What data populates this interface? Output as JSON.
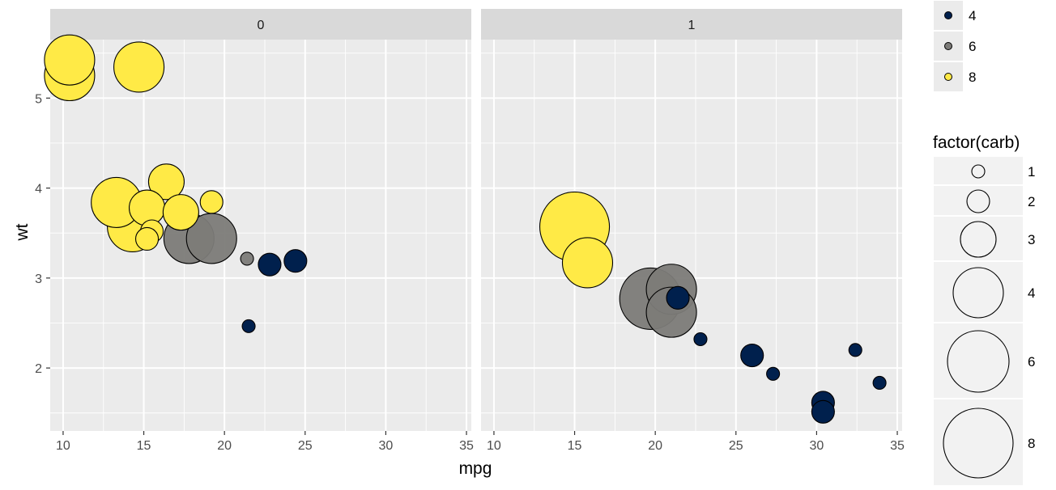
{
  "chart_data": {
    "type": "scatter",
    "xlabel": "mpg",
    "ylabel": "wt",
    "facets": [
      "0",
      "1"
    ],
    "xlim": [
      9.2,
      35.3
    ],
    "ylim": [
      1.3,
      5.65
    ],
    "xticks": [
      10,
      15,
      20,
      25,
      30,
      35
    ],
    "yticks": [
      2,
      3,
      4,
      5
    ],
    "grid": true,
    "colors": {
      "4": "#00204d",
      "6": "#7c7b78",
      "8": "#ffea46",
      "panel_bg": "#ebebeb",
      "strip_bg": "#d9d9d9",
      "gridline": "#ffffff"
    },
    "fill_legend": {
      "title": "",
      "position": "right",
      "entries": [
        {
          "label": "4",
          "color": "#00204d"
        },
        {
          "label": "6",
          "color": "#7c7b78"
        },
        {
          "label": "8",
          "color": "#ffea46"
        }
      ]
    },
    "size_legend": {
      "title": "factor(carb)",
      "position": "right",
      "entries": [
        "1",
        "2",
        "3",
        "4",
        "6",
        "8"
      ]
    },
    "points": [
      {
        "facet": "0",
        "mpg": 10.4,
        "wt": 5.25,
        "cyl": "8",
        "carb": "4"
      },
      {
        "facet": "0",
        "mpg": 10.4,
        "wt": 5.424,
        "cyl": "8",
        "carb": "4"
      },
      {
        "facet": "0",
        "mpg": 14.7,
        "wt": 5.345,
        "cyl": "8",
        "carb": "4"
      },
      {
        "facet": "0",
        "mpg": 14.3,
        "wt": 3.57,
        "cyl": "8",
        "carb": "4"
      },
      {
        "facet": "0",
        "mpg": 13.3,
        "wt": 3.84,
        "cyl": "8",
        "carb": "4"
      },
      {
        "facet": "0",
        "mpg": 16.4,
        "wt": 4.07,
        "cyl": "8",
        "carb": "3"
      },
      {
        "facet": "0",
        "mpg": 15.2,
        "wt": 3.78,
        "cyl": "8",
        "carb": "3"
      },
      {
        "facet": "0",
        "mpg": 17.3,
        "wt": 3.73,
        "cyl": "8",
        "carb": "3"
      },
      {
        "facet": "0",
        "mpg": 19.2,
        "wt": 3.845,
        "cyl": "8",
        "carb": "2"
      },
      {
        "facet": "0",
        "mpg": 15.5,
        "wt": 3.52,
        "cyl": "8",
        "carb": "2"
      },
      {
        "facet": "0",
        "mpg": 15.2,
        "wt": 3.435,
        "cyl": "8",
        "carb": "2"
      },
      {
        "facet": "0",
        "mpg": 17.8,
        "wt": 3.44,
        "cyl": "6",
        "carb": "4"
      },
      {
        "facet": "0",
        "mpg": 19.2,
        "wt": 3.44,
        "cyl": "6",
        "carb": "4"
      },
      {
        "facet": "0",
        "mpg": 21.4,
        "wt": 3.215,
        "cyl": "6",
        "carb": "1"
      },
      {
        "facet": "0",
        "mpg": 22.8,
        "wt": 3.15,
        "cyl": "4",
        "carb": "2"
      },
      {
        "facet": "0",
        "mpg": 24.4,
        "wt": 3.19,
        "cyl": "4",
        "carb": "2"
      },
      {
        "facet": "0",
        "mpg": 21.5,
        "wt": 2.465,
        "cyl": "4",
        "carb": "1"
      },
      {
        "facet": "1",
        "mpg": 15.0,
        "wt": 3.57,
        "cyl": "8",
        "carb": "8"
      },
      {
        "facet": "1",
        "mpg": 15.8,
        "wt": 3.17,
        "cyl": "8",
        "carb": "4"
      },
      {
        "facet": "1",
        "mpg": 21.0,
        "wt": 2.875,
        "cyl": "6",
        "carb": "4"
      },
      {
        "facet": "1",
        "mpg": 21.0,
        "wt": 2.62,
        "cyl": "6",
        "carb": "4"
      },
      {
        "facet": "1",
        "mpg": 19.7,
        "wt": 2.77,
        "cyl": "6",
        "carb": "6"
      },
      {
        "facet": "1",
        "mpg": 21.4,
        "wt": 2.78,
        "cyl": "4",
        "carb": "2"
      },
      {
        "facet": "1",
        "mpg": 22.8,
        "wt": 2.32,
        "cyl": "4",
        "carb": "1"
      },
      {
        "facet": "1",
        "mpg": 26.0,
        "wt": 2.14,
        "cyl": "4",
        "carb": "2"
      },
      {
        "facet": "1",
        "mpg": 27.3,
        "wt": 1.935,
        "cyl": "4",
        "carb": "1"
      },
      {
        "facet": "1",
        "mpg": 30.4,
        "wt": 1.615,
        "cyl": "4",
        "carb": "2"
      },
      {
        "facet": "1",
        "mpg": 30.4,
        "wt": 1.513,
        "cyl": "4",
        "carb": "2"
      },
      {
        "facet": "1",
        "mpg": 32.4,
        "wt": 2.2,
        "cyl": "4",
        "carb": "1"
      },
      {
        "facet": "1",
        "mpg": 33.9,
        "wt": 1.835,
        "cyl": "4",
        "carb": "1"
      }
    ]
  }
}
